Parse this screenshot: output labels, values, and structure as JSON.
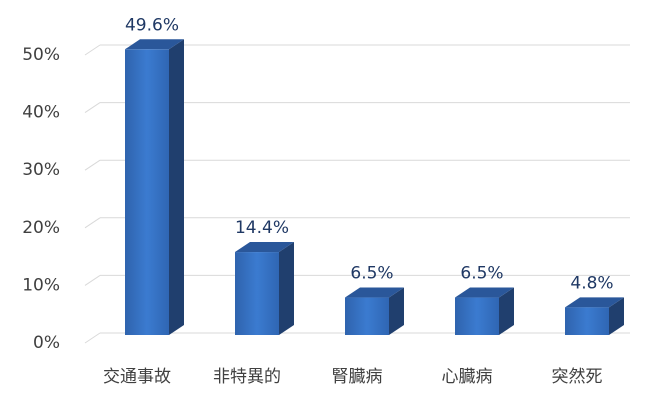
{
  "chart_data": {
    "type": "bar3d",
    "categories": [
      "交通事故",
      "非特異的",
      "腎臓病",
      "心臓病",
      "突然死"
    ],
    "values": [
      49.6,
      14.4,
      6.5,
      6.5,
      4.8
    ],
    "value_labels": [
      "49.6%",
      "14.4%",
      "6.5%",
      "6.5%",
      "4.8%"
    ],
    "color": "#3a78c9",
    "ylim": [
      0,
      50
    ],
    "yticks": [
      {
        "value": 0,
        "label": "0%"
      },
      {
        "value": 10,
        "label": "10%"
      },
      {
        "value": 20,
        "label": "20%"
      },
      {
        "value": 30,
        "label": "30%"
      },
      {
        "value": 40,
        "label": "40%"
      },
      {
        "value": 50,
        "label": "50%"
      }
    ],
    "grid": true
  }
}
